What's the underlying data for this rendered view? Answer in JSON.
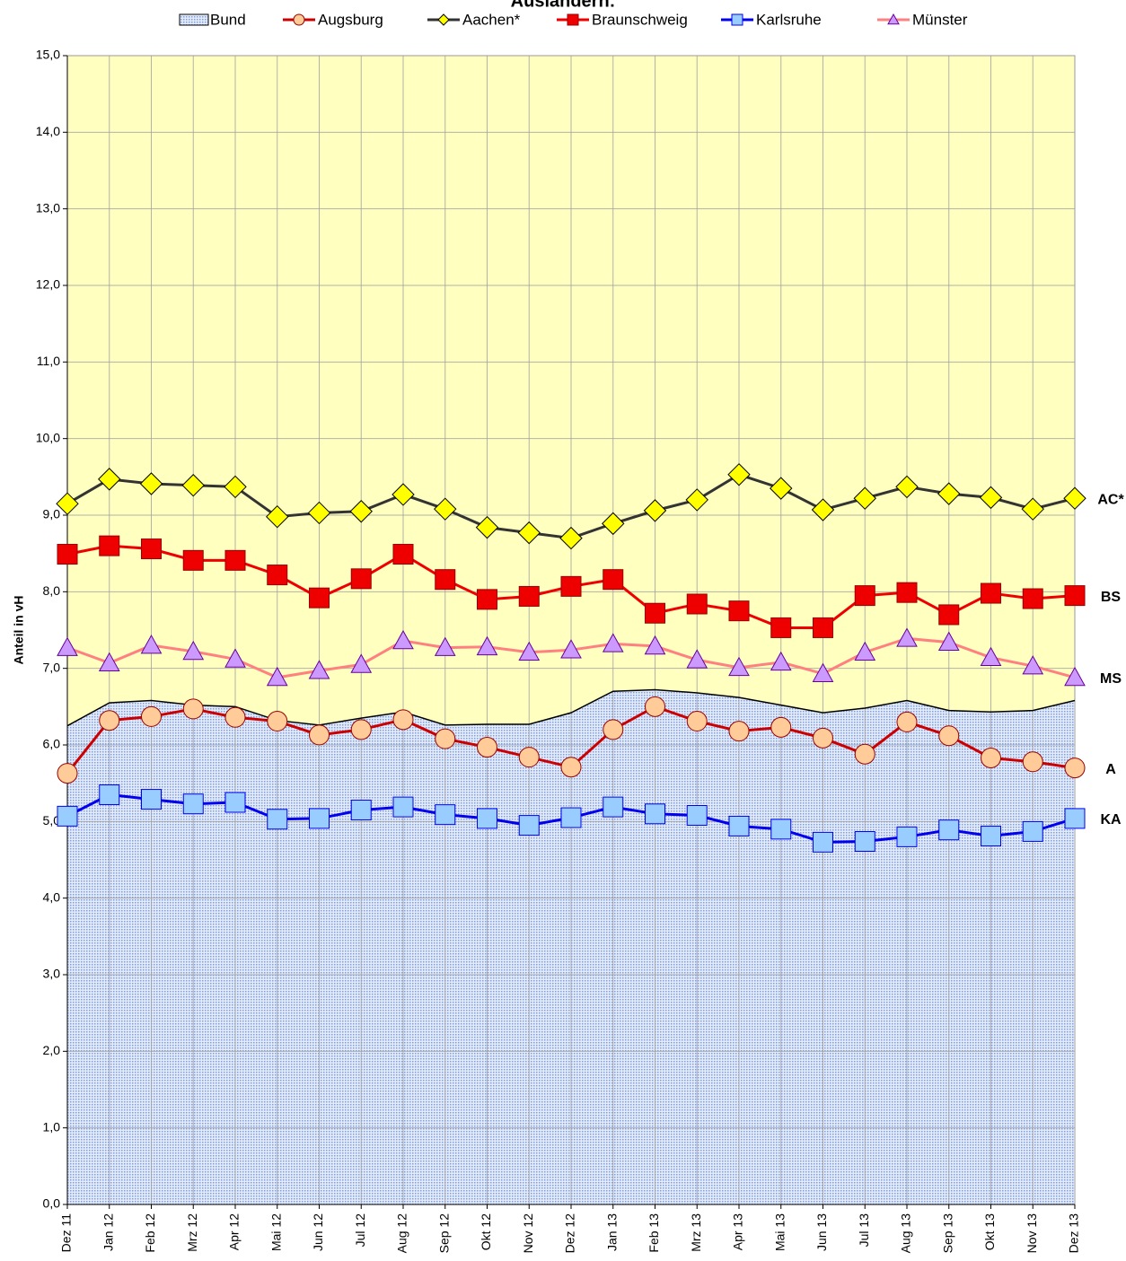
{
  "chart_data": {
    "type": "line",
    "title": "Ausländern:",
    "ylabel": "Anteil in vH",
    "categories": [
      "Dez 11",
      "Jan 12",
      "Feb 12",
      "Mrz 12",
      "Apr 12",
      "Mai 12",
      "Jun 12",
      "Jul 12",
      "Aug 12",
      "Sep 12",
      "Okt 12",
      "Nov 12",
      "Dez 12",
      "Jan 13",
      "Feb 13",
      "Mrz 13",
      "Apr 13",
      "Mai 13",
      "Jun 13",
      "Jul 13",
      "Aug 13",
      "Sep 13",
      "Okt 13",
      "Nov 13",
      "Dez 13"
    ],
    "ylim": [
      0,
      15
    ],
    "yticks": [
      {
        "value": 0,
        "label": "0,0"
      },
      {
        "value": 1,
        "label": "1,0"
      },
      {
        "value": 2,
        "label": "2,0"
      },
      {
        "value": 3,
        "label": "3,0"
      },
      {
        "value": 4,
        "label": "4,0"
      },
      {
        "value": 5,
        "label": "5,0"
      },
      {
        "value": 6,
        "label": "6,0"
      },
      {
        "value": 7,
        "label": "7,0"
      },
      {
        "value": 8,
        "label": "8,0"
      },
      {
        "value": 9,
        "label": "9,0"
      },
      {
        "value": 10,
        "label": "10,0"
      },
      {
        "value": 11,
        "label": "11,0"
      },
      {
        "value": 12,
        "label": "12,0"
      },
      {
        "value": 13,
        "label": "13,0"
      },
      {
        "value": 14,
        "label": "14,0"
      },
      {
        "value": 15,
        "label": "15,0"
      }
    ],
    "grid": true,
    "legend": "top",
    "background": "#FFFFC0",
    "series": [
      {
        "name": "Bund",
        "kind": "area",
        "color": "#000000",
        "marker_fill": "#8FA8E8",
        "values": [
          6.25,
          6.55,
          6.58,
          6.52,
          6.5,
          6.32,
          6.26,
          6.35,
          6.43,
          6.26,
          6.27,
          6.27,
          6.42,
          6.7,
          6.72,
          6.68,
          6.62,
          6.52,
          6.42,
          6.48,
          6.58,
          6.45,
          6.43,
          6.45,
          6.58
        ]
      },
      {
        "name": "Augsburg",
        "marker": "circle",
        "color": "#CC0000",
        "marker_fill": "#FFCC99",
        "end_label": "A",
        "values": [
          5.63,
          6.32,
          6.37,
          6.47,
          6.36,
          6.31,
          6.13,
          6.2,
          6.33,
          6.08,
          5.97,
          5.84,
          5.71,
          6.2,
          6.5,
          6.31,
          6.18,
          6.23,
          6.09,
          5.88,
          6.3,
          6.12,
          5.83,
          5.78,
          5.7
        ]
      },
      {
        "name": "Aachen*",
        "marker": "diamond",
        "color": "#333333",
        "marker_fill": "#FFFF00",
        "end_label": "AC*",
        "values": [
          9.15,
          9.47,
          9.41,
          9.39,
          9.37,
          8.98,
          9.03,
          9.05,
          9.27,
          9.08,
          8.84,
          8.77,
          8.7,
          8.89,
          9.06,
          9.2,
          9.53,
          9.35,
          9.07,
          9.22,
          9.37,
          9.28,
          9.23,
          9.08,
          9.22
        ]
      },
      {
        "name": "Braunschweig",
        "marker": "square",
        "color": "#EE0000",
        "marker_fill": "#EE0000",
        "end_label": "BS",
        "values": [
          8.49,
          8.6,
          8.56,
          8.41,
          8.41,
          8.22,
          7.92,
          8.17,
          8.49,
          8.16,
          7.9,
          7.94,
          8.07,
          8.16,
          7.72,
          7.84,
          7.75,
          7.53,
          7.53,
          7.95,
          7.99,
          7.7,
          7.98,
          7.91,
          7.95
        ]
      },
      {
        "name": "Karlsruhe",
        "marker": "square",
        "color": "#0000EE",
        "marker_fill": "#99CCFF",
        "end_label": "KA",
        "values": [
          5.07,
          5.35,
          5.29,
          5.23,
          5.25,
          5.03,
          5.04,
          5.15,
          5.19,
          5.09,
          5.04,
          4.95,
          5.05,
          5.19,
          5.1,
          5.08,
          4.94,
          4.9,
          4.73,
          4.74,
          4.8,
          4.89,
          4.81,
          4.87,
          5.04
        ]
      },
      {
        "name": "Münster",
        "marker": "triangle",
        "color": "#FF8080",
        "marker_fill": "#CC99FF",
        "end_label": "MS",
        "values": [
          7.27,
          7.07,
          7.3,
          7.22,
          7.12,
          6.88,
          6.97,
          7.05,
          7.36,
          7.27,
          7.28,
          7.21,
          7.24,
          7.32,
          7.29,
          7.11,
          7.01,
          7.08,
          6.93,
          7.21,
          7.39,
          7.34,
          7.14,
          7.03,
          6.88
        ]
      }
    ]
  }
}
